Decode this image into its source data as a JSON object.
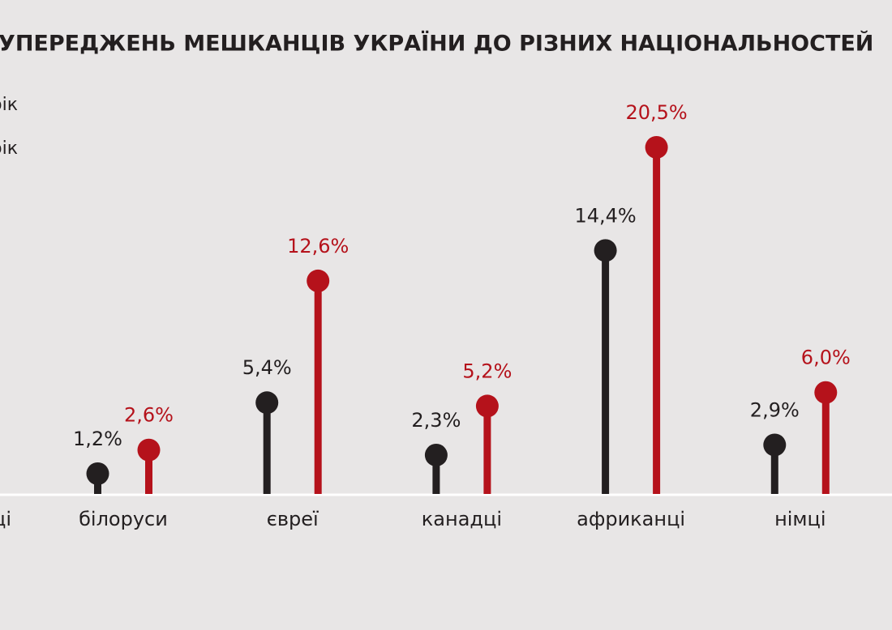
{
  "chart_data": {
    "type": "lollipop",
    "title": "УПЕРЕДЖЕНЬ МЕШКАНЦІВ УКРАЇНИ ДО РІЗНИХ НАЦІОНАЛЬНОСТЕЙ",
    "categories": [
      "ці",
      "білоруси",
      "євреї",
      "канадці",
      "африканці",
      "німці"
    ],
    "series": [
      {
        "name": "рік",
        "color": "#231f20",
        "values": [
          null,
          1.2,
          5.4,
          2.3,
          14.4,
          2.9
        ],
        "value_labels": [
          null,
          "1,2%",
          "5,4%",
          "2,3%",
          "14,4%",
          "2,9%"
        ]
      },
      {
        "name": "рік",
        "color": "#b5121b",
        "values": [
          null,
          2.6,
          12.6,
          5.2,
          20.5,
          6.0
        ],
        "value_labels": [
          null,
          "2,6%",
          "12,6%",
          "5,2%",
          "20,5%",
          "6,0%"
        ]
      }
    ],
    "ylim": [
      0,
      25
    ]
  }
}
